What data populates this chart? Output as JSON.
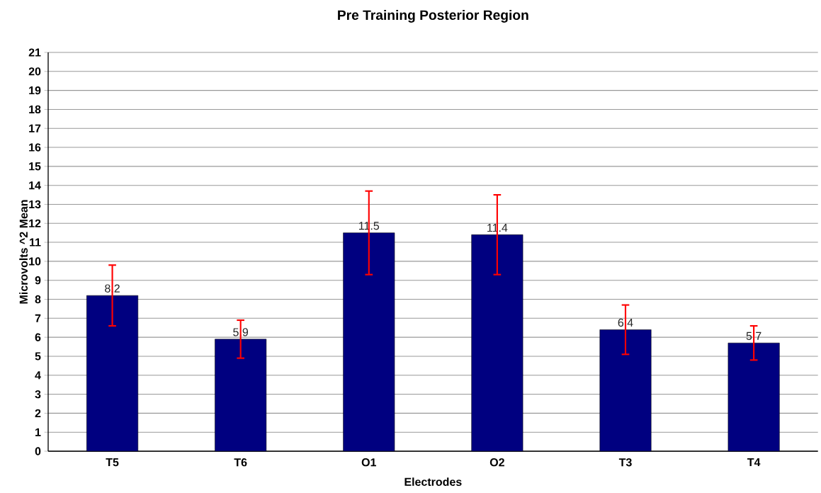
{
  "chart_data": {
    "type": "bar",
    "title": "Pre Training Posterior Region",
    "xlabel": "Electrodes",
    "ylabel": "Microvolts ^2 Mean",
    "categories": [
      "T5",
      "T6",
      "O1",
      "O2",
      "T3",
      "T4"
    ],
    "values": [
      8.2,
      5.9,
      11.5,
      11.4,
      6.4,
      5.7
    ],
    "errors": [
      [
        6.6,
        9.8
      ],
      [
        4.9,
        6.9
      ],
      [
        9.3,
        13.7
      ],
      [
        9.3,
        13.5
      ],
      [
        5.1,
        7.7
      ],
      [
        4.8,
        6.6
      ]
    ],
    "color": "#000080",
    "ylim": [
      0,
      21
    ],
    "yticks": [
      0,
      1,
      2,
      3,
      4,
      5,
      6,
      7,
      8,
      9,
      10,
      11,
      12,
      13,
      14,
      15,
      16,
      17,
      18,
      19,
      20,
      21
    ],
    "grid": "y",
    "data_labels": true
  }
}
